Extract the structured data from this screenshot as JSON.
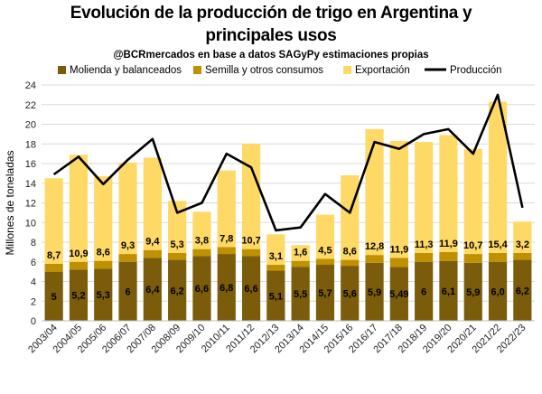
{
  "header": {
    "title_line1": "Evolución de la producción de trigo en Argentina y",
    "title_line2": "principales usos",
    "subtitle": "@BCRmercados en base a datos SAGyPy estimaciones propias"
  },
  "colors": {
    "molienda": "#7a5c0a",
    "semilla": "#bf9000",
    "exportacion": "#ffd966",
    "produccion": "#000000",
    "grid": "#d9d9d9"
  },
  "chart_data": {
    "type": "bar",
    "stacked": true,
    "title": "Evolución de la producción de trigo en Argentina y principales usos",
    "subtitle": "@BCRmercados en base a datos SAGyPy estimaciones propias",
    "ylabel": "Millones de toneladas",
    "xlabel": "",
    "ylim": [
      0,
      24
    ],
    "yticks": [
      "0",
      "2",
      "4",
      "6",
      "8",
      "10",
      "12",
      "14",
      "16",
      "18",
      "20",
      "22",
      "24"
    ],
    "legend_position": "top",
    "grid": true,
    "categories": [
      "2003/04",
      "2004/05",
      "2005/06",
      "2006/07",
      "2007/08",
      "2008/09",
      "2009/10",
      "2010/11",
      "2011/12",
      "2012/13",
      "2013/14",
      "2014/15",
      "2015/16",
      "2016/17",
      "2017/18",
      "2018/19",
      "2019/20",
      "2020/21",
      "2021/22",
      "2022/23"
    ],
    "series": [
      {
        "name": "Molienda y balanceados",
        "values": [
          5.0,
          5.2,
          5.3,
          6.0,
          6.4,
          6.2,
          6.6,
          6.8,
          6.6,
          5.1,
          5.5,
          5.7,
          5.6,
          5.9,
          5.49,
          6.0,
          6.1,
          5.9,
          6.0,
          6.2
        ],
        "labels": [
          "5",
          "5,2",
          "5,3",
          "6",
          "6,4",
          "6,2",
          "6,6",
          "6,8",
          "6,6",
          "5,1",
          "5,5",
          "5,7",
          "5,6",
          "5,9",
          "5,49",
          "6",
          "6,1",
          "5,9",
          "6,0",
          "6,2"
        ]
      },
      {
        "name": "Semilla y otros consumos",
        "values": [
          0.8,
          0.8,
          0.8,
          0.8,
          0.8,
          0.7,
          0.7,
          0.7,
          0.7,
          0.6,
          0.6,
          0.6,
          0.6,
          0.8,
          0.9,
          0.9,
          0.9,
          0.9,
          0.9,
          0.7
        ]
      },
      {
        "name": "Exportación",
        "values": [
          8.7,
          10.9,
          8.6,
          9.3,
          9.4,
          5.3,
          3.8,
          7.8,
          10.7,
          3.1,
          1.6,
          4.5,
          8.6,
          12.8,
          11.9,
          11.3,
          11.9,
          10.7,
          15.4,
          3.2
        ],
        "labels": [
          "8,7",
          "10,9",
          "8,6",
          "9,3",
          "9,4",
          "5,3",
          "3,8",
          "7,8",
          "10,7",
          "3,1",
          "1,6",
          "4,5",
          "8,6",
          "12,8",
          "11,9",
          "11,3",
          "11,9",
          "10,7",
          "15,4",
          "3,2"
        ]
      },
      {
        "name": "Producción",
        "type": "line",
        "values": [
          14.9,
          16.7,
          13.9,
          16.4,
          18.5,
          11.0,
          12.0,
          17.0,
          15.6,
          9.2,
          9.5,
          12.9,
          11.0,
          18.2,
          17.5,
          19.0,
          19.5,
          17.0,
          23.0,
          11.5
        ]
      }
    ]
  }
}
